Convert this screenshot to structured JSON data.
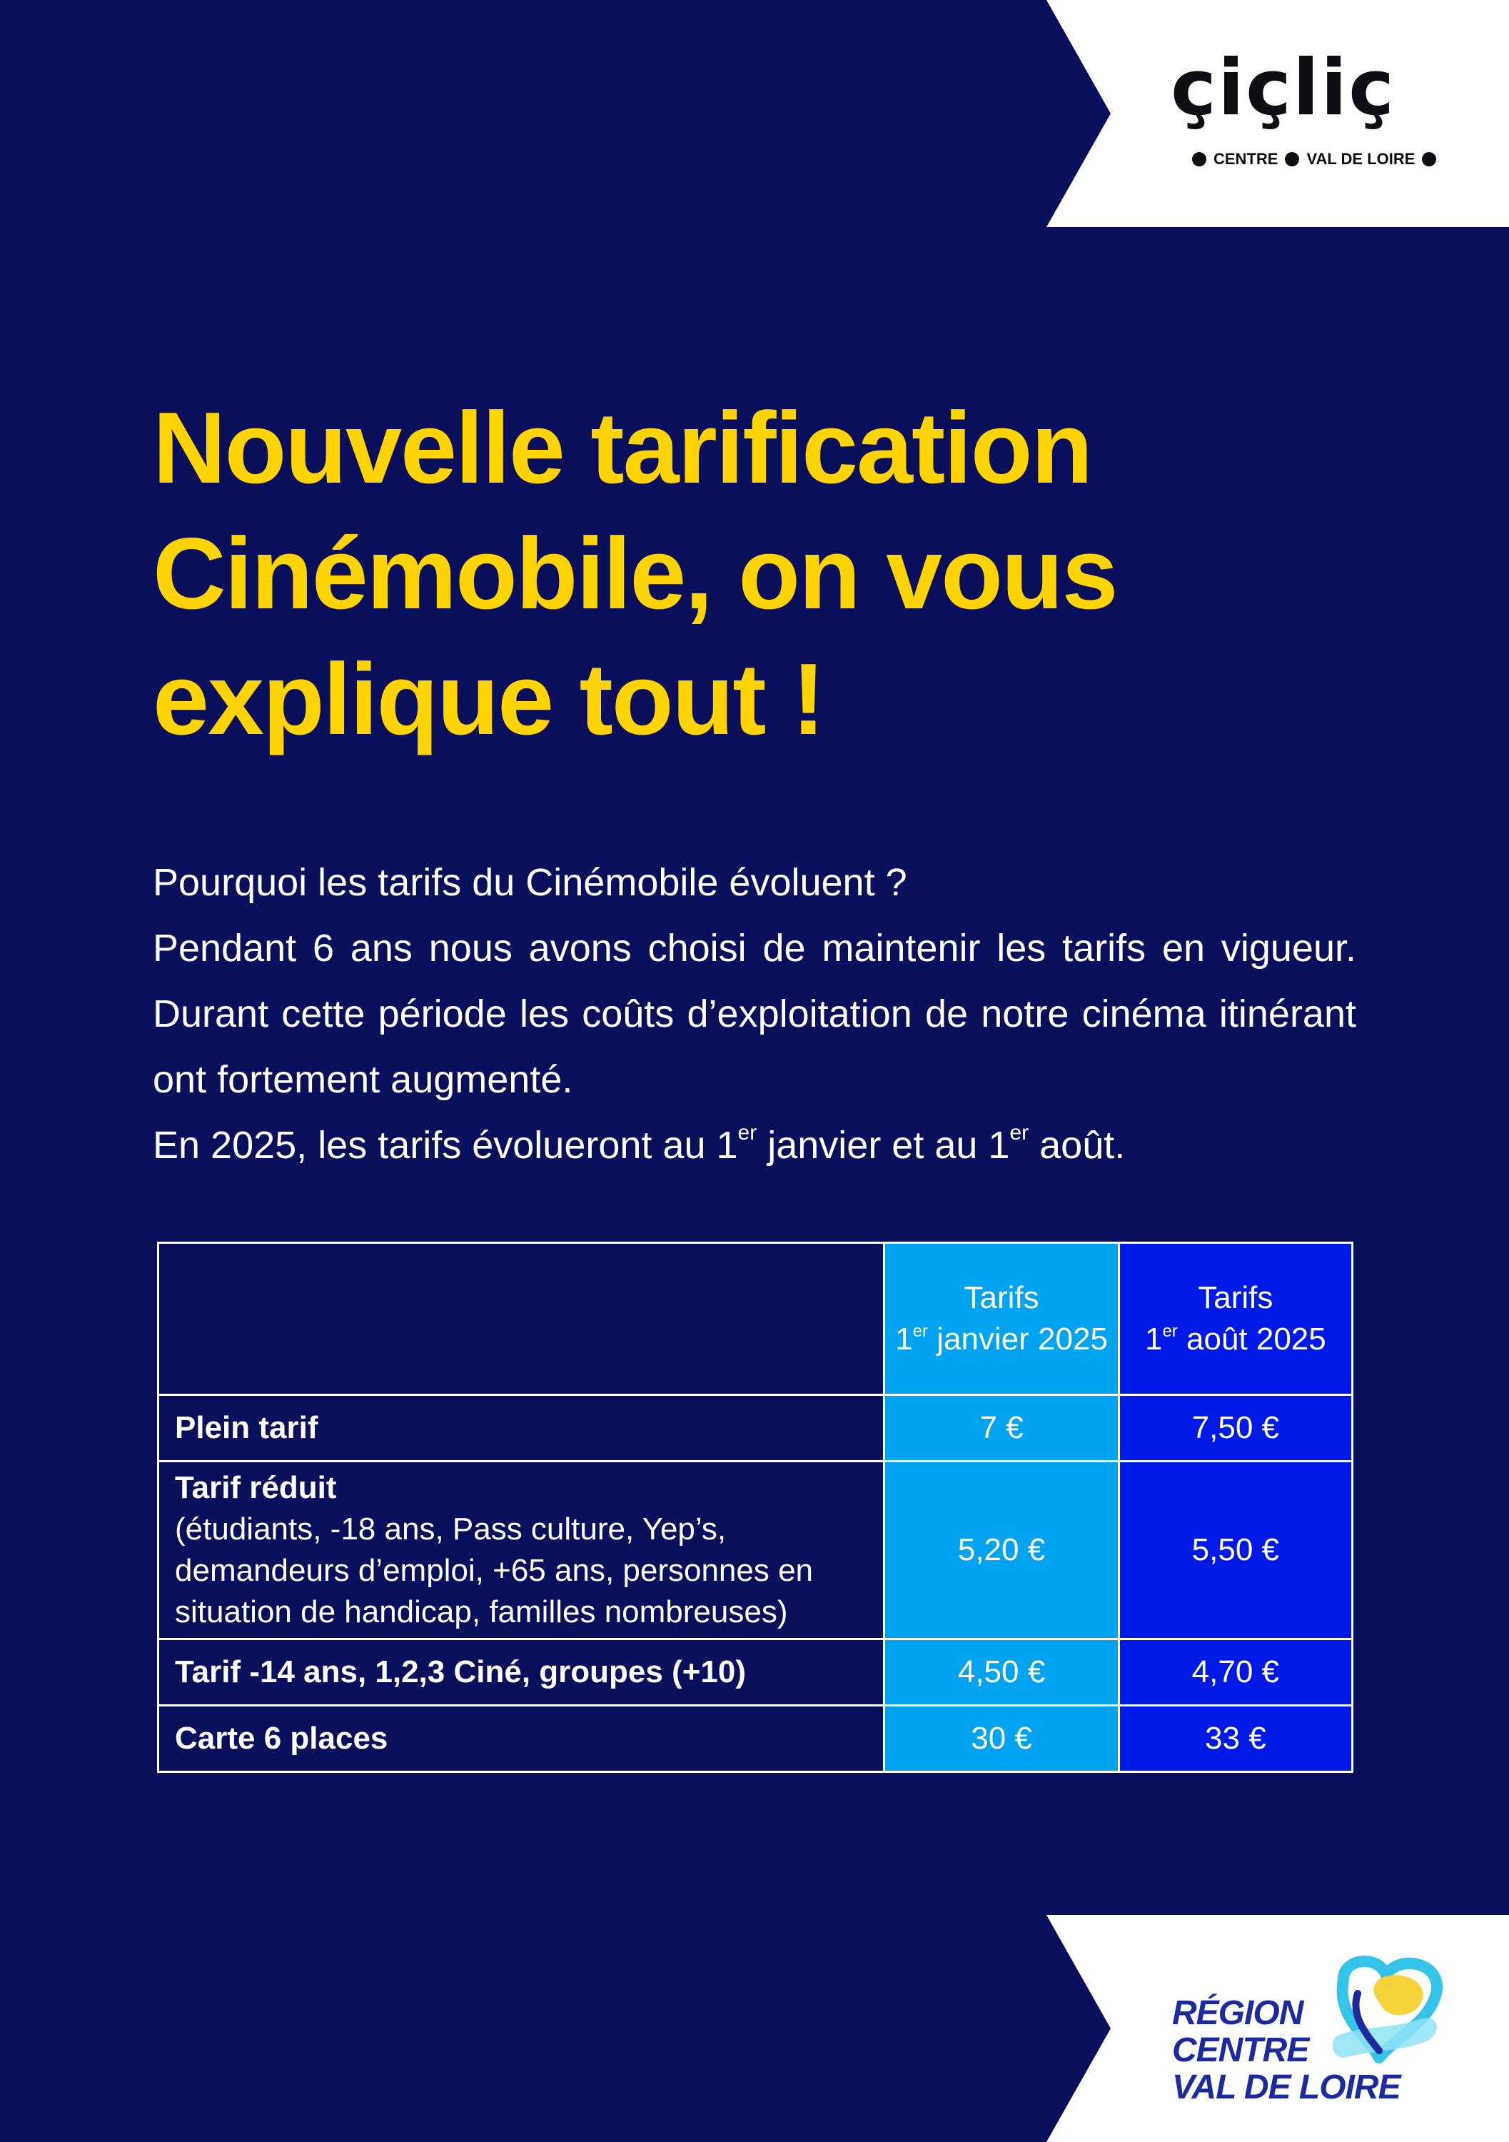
{
  "brand": {
    "logo_word": "çiçliç",
    "logo_sub_left": "CENTRE",
    "logo_sub_right": "VAL DE LOIRE"
  },
  "title": {
    "line1": "Nouvelle tarification",
    "line2": "Cinémobile, on vous",
    "line3": "explique tout !"
  },
  "intro": {
    "question": "Pourquoi les tarifs du Cinémobile évoluent ?",
    "paragraph": "Pendant 6 ans nous avons choisi de maintenir les tarifs en vigueur. Durant cette période les coûts d’exploitation de notre cinéma itinérant ont fortement augmenté.",
    "last_a": "En 2025, les tarifs évolueront au 1",
    "last_sup1": "er",
    "last_b": " janvier et au 1",
    "last_sup2": "er",
    "last_c": " août."
  },
  "table": {
    "col_jan": {
      "line1": "Tarifs",
      "line2_a": "1",
      "line2_sup": "er",
      "line2_b": " janvier 2025"
    },
    "col_aug": {
      "line1": "Tarifs",
      "line2_a": "1",
      "line2_sup": "er",
      "line2_b": " août 2025"
    },
    "rows": [
      {
        "label": "Plein tarif",
        "jan": "7 €",
        "aug": "7,50 €"
      },
      {
        "label": "Tarif réduit",
        "details": [
          "(étudiants, -18 ans, Pass culture, Yep’s,",
          "demandeurs d’emploi, +65 ans, personnes en",
          "situation de handicap, familles nombreuses)"
        ],
        "jan": "5,20 €",
        "aug": "5,50 €"
      },
      {
        "label": "Tarif -14 ans, 1,2,3 Ciné, groupes (+10)",
        "jan": "4,50 €",
        "aug": "4,70 €"
      },
      {
        "label": "Carte 6 places",
        "jan": "30 €",
        "aug": "33 €"
      }
    ]
  },
  "region": {
    "line1": "RÉGION",
    "line2": "CENTRE",
    "line3": "VAL DE LOIRE"
  },
  "colors": {
    "background": "#0a0f5c",
    "title": "#ffd400",
    "column_january": "#00a3f0",
    "column_august": "#0019e6",
    "region_text": "#1c2a9e"
  }
}
